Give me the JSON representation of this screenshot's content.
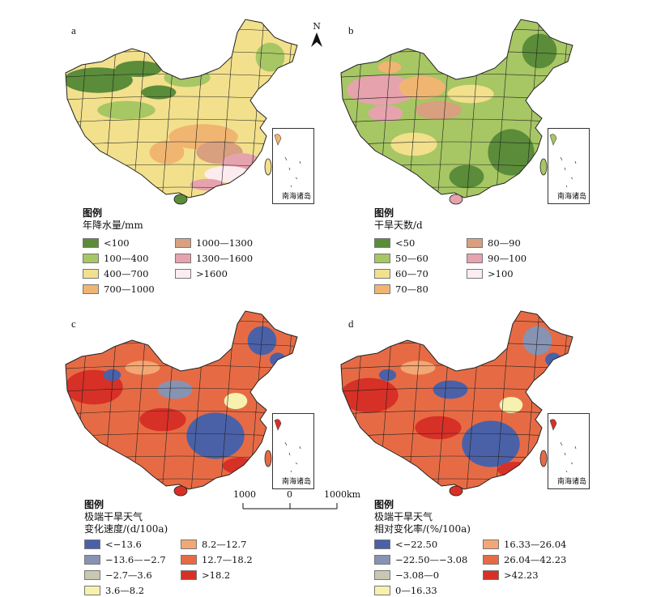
{
  "north_label": "N",
  "scale": {
    "left": "1000",
    "mid": "0",
    "right": "1000km"
  },
  "inset_label": "南海诸岛",
  "panels": [
    {
      "id": "a",
      "legend_head": "图例",
      "legend_title_lines": [
        "年降水量/mm"
      ],
      "items": [
        {
          "label": "<100",
          "color": "#5b8c3a"
        },
        {
          "label": "100—400",
          "color": "#a7c664"
        },
        {
          "label": "400—700",
          "color": "#f2e08c"
        },
        {
          "label": "700—1000",
          "color": "#f0b571"
        },
        {
          "label": "1000—1300",
          "color": "#d8a07f"
        },
        {
          "label": "1300—1600",
          "color": "#e6a3ad"
        },
        {
          "label": ">1600",
          "color": "#fdecef"
        }
      ]
    },
    {
      "id": "b",
      "legend_head": "图例",
      "legend_title_lines": [
        "干旱天数/d"
      ],
      "items": [
        {
          "label": "<50",
          "color": "#5b8c3a"
        },
        {
          "label": "50—60",
          "color": "#a7c664"
        },
        {
          "label": "60—70",
          "color": "#f2e08c"
        },
        {
          "label": "70—80",
          "color": "#f0b571"
        },
        {
          "label": "80—90",
          "color": "#d8a07f"
        },
        {
          "label": "90—100",
          "color": "#e6a3ad"
        },
        {
          "label": ">100",
          "color": "#fdecef"
        }
      ]
    },
    {
      "id": "c",
      "legend_head": "图例",
      "legend_title_lines": [
        "极端干旱天气",
        "变化速度/(d/100a)"
      ],
      "items": [
        {
          "label": "<−13.6",
          "color": "#4a61a8"
        },
        {
          "label": "−13.6—−2.7",
          "color": "#8793b3"
        },
        {
          "label": "−2.7—3.6",
          "color": "#c9c7b3"
        },
        {
          "label": "3.6—8.2",
          "color": "#f7f1b0"
        },
        {
          "label": "8.2—12.7",
          "color": "#f2a774"
        },
        {
          "label": "12.7—18.2",
          "color": "#e66b45"
        },
        {
          "label": ">18.2",
          "color": "#d73027"
        }
      ]
    },
    {
      "id": "d",
      "legend_head": "图例",
      "legend_title_lines": [
        "极端干旱天气",
        "相对变化率/(%/100a)"
      ],
      "items": [
        {
          "label": "<−22.50",
          "color": "#4a61a8"
        },
        {
          "label": "−22.50—−3.08",
          "color": "#8793b3"
        },
        {
          "label": "−3.08—0",
          "color": "#c9c7b3"
        },
        {
          "label": "0—16.33",
          "color": "#f7f1b0"
        },
        {
          "label": "16.33—26.04",
          "color": "#f2a774"
        },
        {
          "label": "26.04—42.23",
          "color": "#e66b45"
        },
        {
          "label": ">42.23",
          "color": "#d73027"
        }
      ]
    }
  ]
}
